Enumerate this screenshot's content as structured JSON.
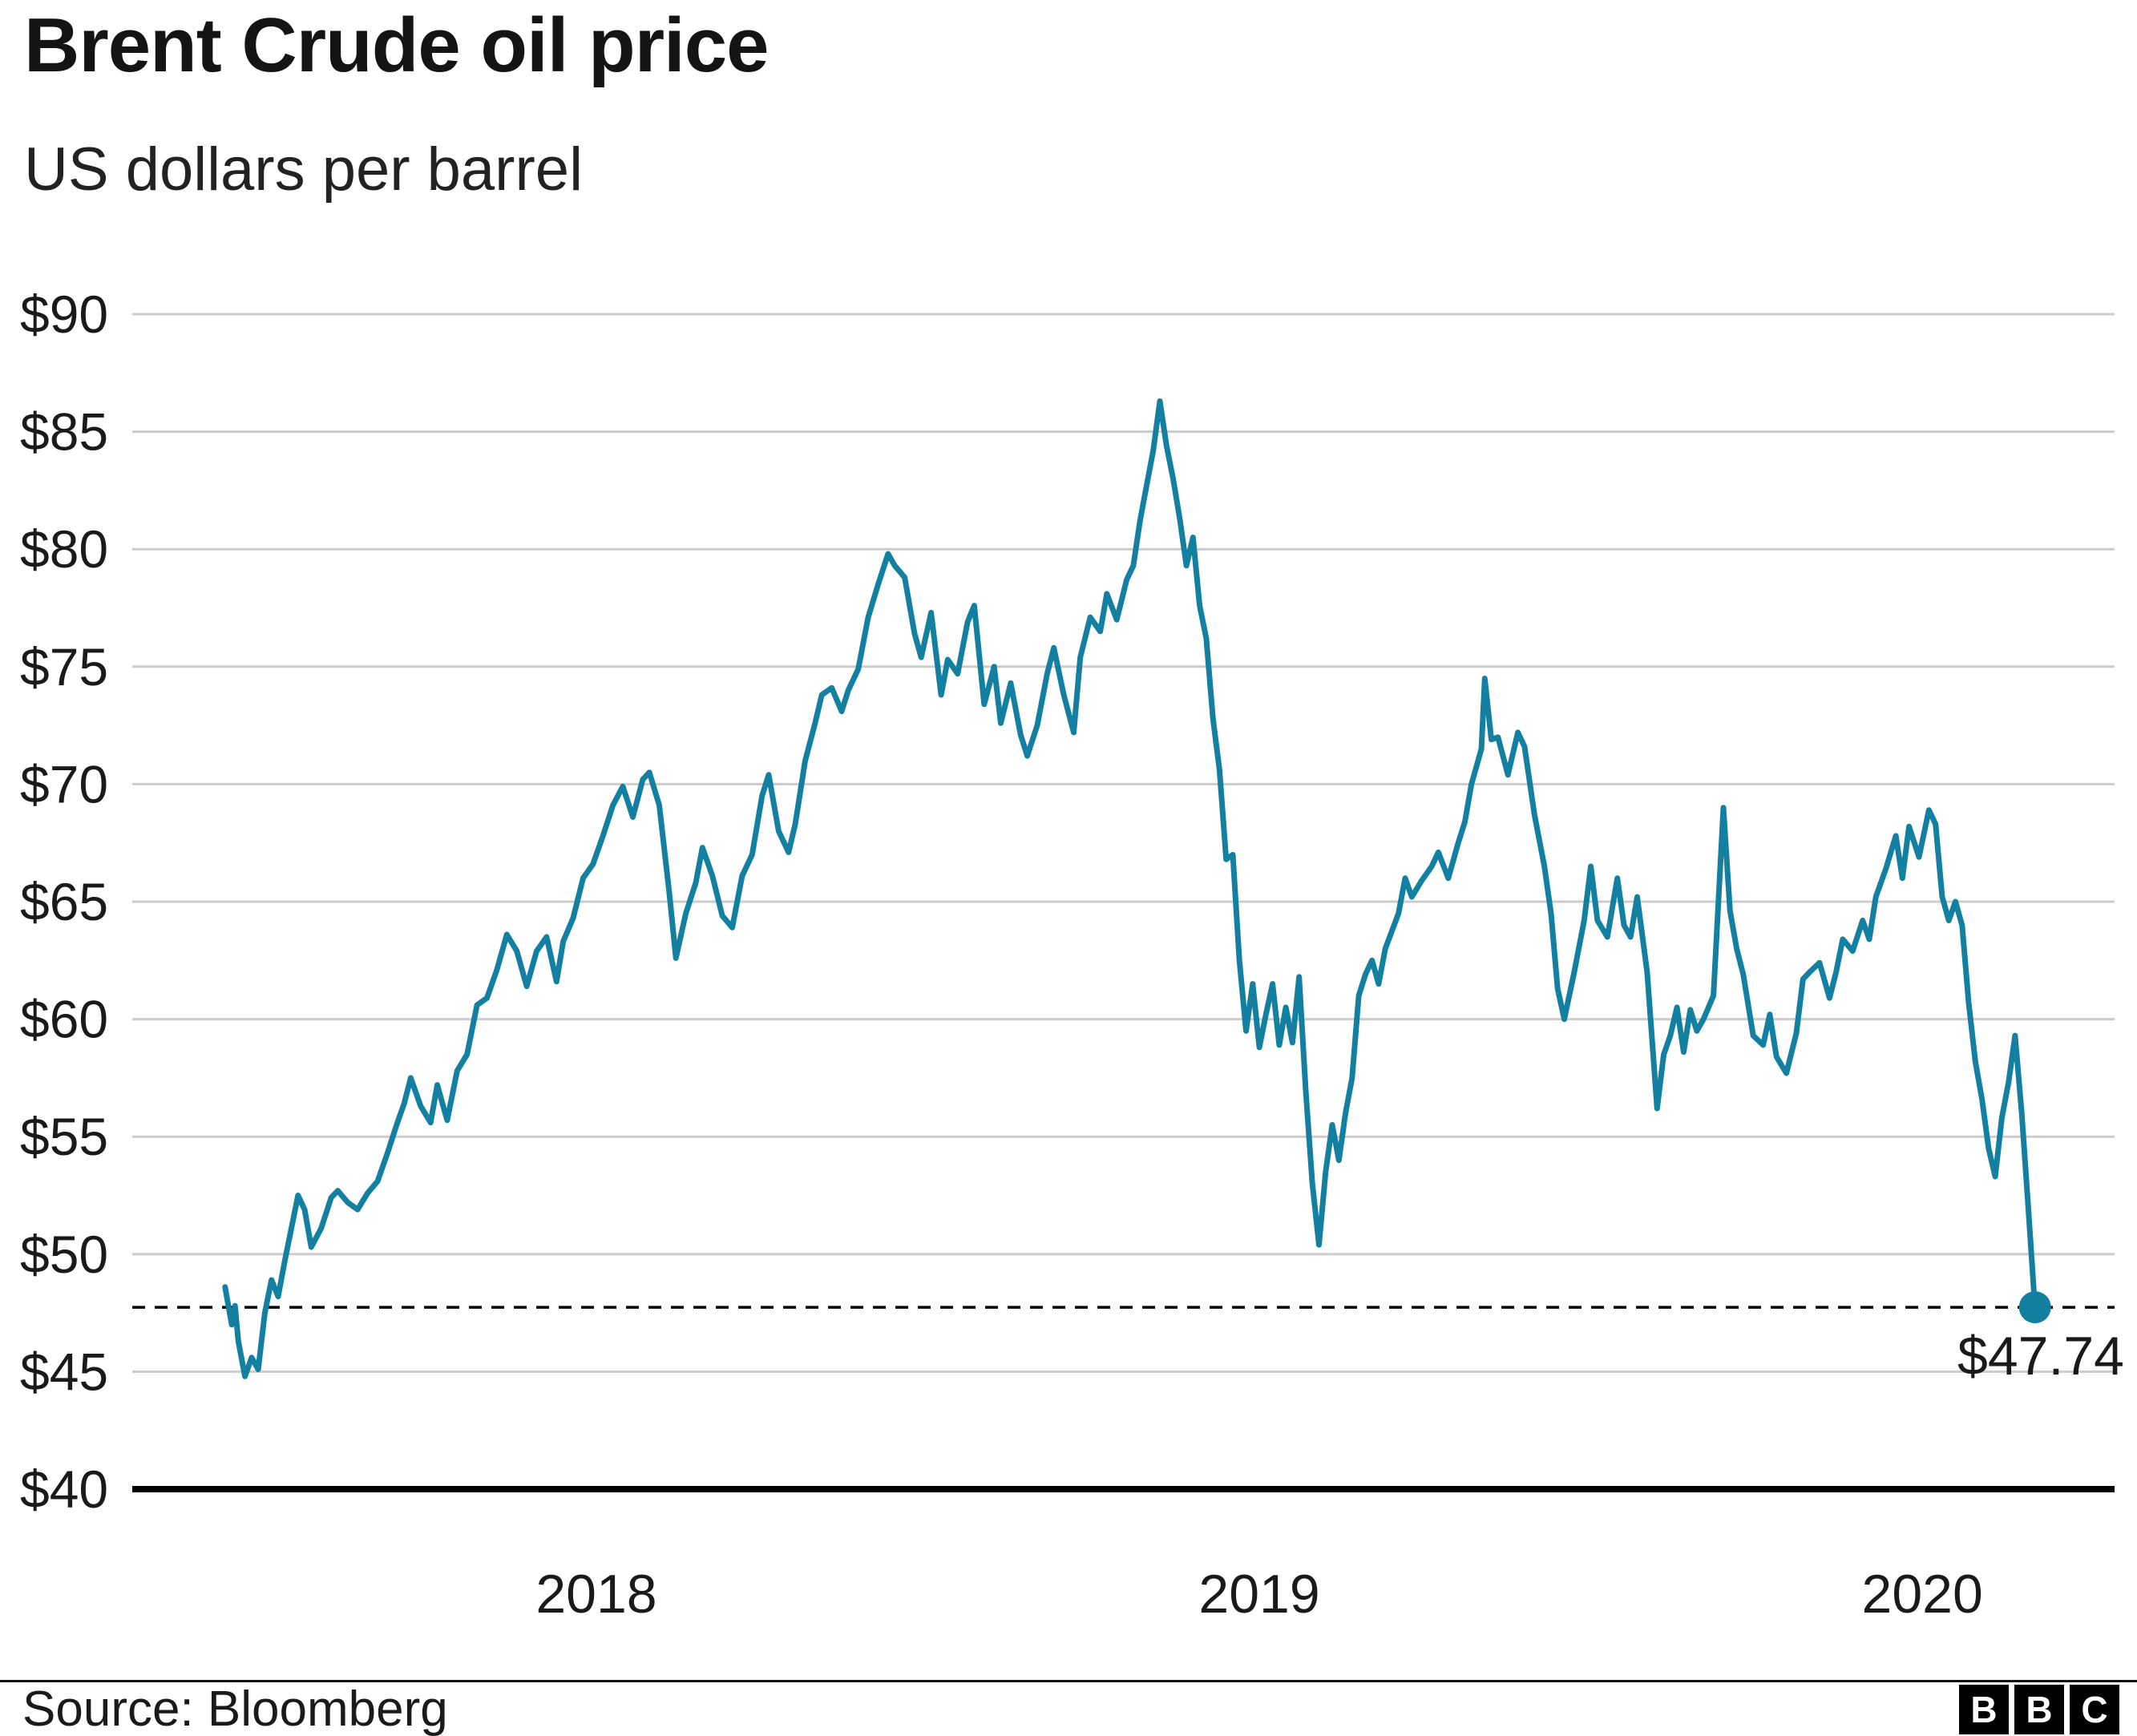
{
  "header": {
    "title": "Brent Crude oil price",
    "subtitle": "US dollars per barrel"
  },
  "footer": {
    "source": "Source: Bloomberg",
    "logo_letters": [
      "B",
      "B",
      "C"
    ]
  },
  "colors": {
    "line": "#1380A1",
    "annotation_text": "#1380A1",
    "grid": "#cccccc",
    "baseline": "#000000",
    "dashed": "#000000",
    "text": "#1a1a1a"
  },
  "chart_data": {
    "type": "line",
    "title": "Brent Crude oil price",
    "ylabel": "US dollars per barrel",
    "grid": true,
    "legend": "none",
    "x_domain": [
      2017.3,
      2020.29
    ],
    "ylim": [
      40,
      90
    ],
    "y_ticks": [
      {
        "value": 40,
        "label": "$40"
      },
      {
        "value": 45,
        "label": "$45"
      },
      {
        "value": 50,
        "label": "$50"
      },
      {
        "value": 55,
        "label": "$55"
      },
      {
        "value": 60,
        "label": "$60"
      },
      {
        "value": 65,
        "label": "$65"
      },
      {
        "value": 70,
        "label": "$70"
      },
      {
        "value": 75,
        "label": "$75"
      },
      {
        "value": 80,
        "label": "$80"
      },
      {
        "value": 85,
        "label": "$85"
      },
      {
        "value": 90,
        "label": "$90"
      }
    ],
    "x_ticks": [
      {
        "value": 2018,
        "label": "2018"
      },
      {
        "value": 2019,
        "label": "2019"
      },
      {
        "value": 2020,
        "label": "2020"
      }
    ],
    "annotation": {
      "value": 47.74,
      "label": "$47.74",
      "style": "dashed-rule-with-end-dot"
    },
    "series": [
      {
        "name": "Brent Crude oil price (USD per barrel)",
        "points": [
          [
            2017.44,
            48.6
          ],
          [
            2017.45,
            47.0
          ],
          [
            2017.455,
            47.8
          ],
          [
            2017.46,
            46.3
          ],
          [
            2017.47,
            44.8
          ],
          [
            2017.48,
            45.6
          ],
          [
            2017.49,
            45.1
          ],
          [
            2017.5,
            47.5
          ],
          [
            2017.51,
            48.9
          ],
          [
            2017.52,
            48.2
          ],
          [
            2017.53,
            49.7
          ],
          [
            2017.55,
            52.5
          ],
          [
            2017.56,
            51.9
          ],
          [
            2017.57,
            50.3
          ],
          [
            2017.585,
            51.1
          ],
          [
            2017.6,
            52.4
          ],
          [
            2017.61,
            52.7
          ],
          [
            2017.625,
            52.2
          ],
          [
            2017.64,
            51.9
          ],
          [
            2017.655,
            52.6
          ],
          [
            2017.67,
            53.1
          ],
          [
            2017.685,
            54.3
          ],
          [
            2017.7,
            55.6
          ],
          [
            2017.71,
            56.4
          ],
          [
            2017.72,
            57.5
          ],
          [
            2017.735,
            56.3
          ],
          [
            2017.75,
            55.6
          ],
          [
            2017.76,
            57.2
          ],
          [
            2017.775,
            55.7
          ],
          [
            2017.79,
            57.8
          ],
          [
            2017.805,
            58.5
          ],
          [
            2017.82,
            60.6
          ],
          [
            2017.835,
            60.9
          ],
          [
            2017.85,
            62.1
          ],
          [
            2017.865,
            63.6
          ],
          [
            2017.88,
            62.9
          ],
          [
            2017.895,
            61.4
          ],
          [
            2017.91,
            62.9
          ],
          [
            2017.925,
            63.5
          ],
          [
            2017.94,
            61.6
          ],
          [
            2017.95,
            63.3
          ],
          [
            2017.965,
            64.3
          ],
          [
            2017.98,
            66.0
          ],
          [
            2017.995,
            66.6
          ],
          [
            2018.01,
            67.8
          ],
          [
            2018.025,
            69.1
          ],
          [
            2018.04,
            69.9
          ],
          [
            2018.055,
            68.6
          ],
          [
            2018.07,
            70.2
          ],
          [
            2018.08,
            70.5
          ],
          [
            2018.095,
            69.1
          ],
          [
            2018.11,
            65.4
          ],
          [
            2018.12,
            62.6
          ],
          [
            2018.135,
            64.5
          ],
          [
            2018.15,
            65.8
          ],
          [
            2018.16,
            67.3
          ],
          [
            2018.175,
            66.1
          ],
          [
            2018.19,
            64.4
          ],
          [
            2018.205,
            63.9
          ],
          [
            2018.22,
            66.1
          ],
          [
            2018.235,
            67.0
          ],
          [
            2018.25,
            69.5
          ],
          [
            2018.26,
            70.4
          ],
          [
            2018.275,
            68.0
          ],
          [
            2018.29,
            67.1
          ],
          [
            2018.3,
            68.3
          ],
          [
            2018.315,
            71.0
          ],
          [
            2018.33,
            72.6
          ],
          [
            2018.34,
            73.8
          ],
          [
            2018.355,
            74.1
          ],
          [
            2018.37,
            73.1
          ],
          [
            2018.38,
            74.0
          ],
          [
            2018.395,
            74.9
          ],
          [
            2018.41,
            77.1
          ],
          [
            2018.425,
            78.5
          ],
          [
            2018.44,
            79.8
          ],
          [
            2018.45,
            79.3
          ],
          [
            2018.465,
            78.8
          ],
          [
            2018.48,
            76.4
          ],
          [
            2018.49,
            75.4
          ],
          [
            2018.505,
            77.3
          ],
          [
            2018.52,
            73.8
          ],
          [
            2018.53,
            75.3
          ],
          [
            2018.545,
            74.7
          ],
          [
            2018.56,
            76.9
          ],
          [
            2018.57,
            77.6
          ],
          [
            2018.585,
            73.4
          ],
          [
            2018.6,
            75.0
          ],
          [
            2018.61,
            72.6
          ],
          [
            2018.625,
            74.3
          ],
          [
            2018.64,
            72.1
          ],
          [
            2018.65,
            71.2
          ],
          [
            2018.665,
            72.5
          ],
          [
            2018.68,
            74.7
          ],
          [
            2018.69,
            75.8
          ],
          [
            2018.705,
            73.8
          ],
          [
            2018.72,
            72.2
          ],
          [
            2018.73,
            75.4
          ],
          [
            2018.745,
            77.1
          ],
          [
            2018.76,
            76.5
          ],
          [
            2018.77,
            78.1
          ],
          [
            2018.785,
            77.0
          ],
          [
            2018.8,
            78.7
          ],
          [
            2018.81,
            79.3
          ],
          [
            2018.82,
            81.2
          ],
          [
            2018.83,
            82.7
          ],
          [
            2018.84,
            84.2
          ],
          [
            2018.85,
            86.3
          ],
          [
            2018.86,
            84.4
          ],
          [
            2018.87,
            83.0
          ],
          [
            2018.88,
            81.3
          ],
          [
            2018.89,
            79.3
          ],
          [
            2018.9,
            80.5
          ],
          [
            2018.91,
            77.6
          ],
          [
            2018.92,
            76.2
          ],
          [
            2018.93,
            72.8
          ],
          [
            2018.94,
            70.6
          ],
          [
            2018.95,
            66.8
          ],
          [
            2018.96,
            67.0
          ],
          [
            2018.97,
            62.5
          ],
          [
            2018.98,
            59.5
          ],
          [
            2018.99,
            61.5
          ],
          [
            2019.0,
            58.8
          ],
          [
            2019.01,
            60.2
          ],
          [
            2019.02,
            61.5
          ],
          [
            2019.03,
            58.9
          ],
          [
            2019.04,
            60.5
          ],
          [
            2019.05,
            59.0
          ],
          [
            2019.06,
            61.8
          ],
          [
            2019.07,
            57.0
          ],
          [
            2019.08,
            53.0
          ],
          [
            2019.09,
            50.4
          ],
          [
            2019.1,
            53.5
          ],
          [
            2019.11,
            55.5
          ],
          [
            2019.12,
            54.0
          ],
          [
            2019.13,
            56.0
          ],
          [
            2019.14,
            57.5
          ],
          [
            2019.15,
            61.0
          ],
          [
            2019.16,
            61.9
          ],
          [
            2019.17,
            62.5
          ],
          [
            2019.18,
            61.5
          ],
          [
            2019.19,
            63.0
          ],
          [
            2019.21,
            64.5
          ],
          [
            2019.22,
            66.0
          ],
          [
            2019.23,
            65.2
          ],
          [
            2019.245,
            65.9
          ],
          [
            2019.26,
            66.5
          ],
          [
            2019.27,
            67.1
          ],
          [
            2019.285,
            66.0
          ],
          [
            2019.3,
            67.5
          ],
          [
            2019.31,
            68.4
          ],
          [
            2019.32,
            70.0
          ],
          [
            2019.33,
            71.0
          ],
          [
            2019.335,
            71.5
          ],
          [
            2019.34,
            74.5
          ],
          [
            2019.35,
            71.9
          ],
          [
            2019.36,
            72.0
          ],
          [
            2019.375,
            70.4
          ],
          [
            2019.39,
            72.2
          ],
          [
            2019.4,
            71.6
          ],
          [
            2019.415,
            68.7
          ],
          [
            2019.43,
            66.5
          ],
          [
            2019.44,
            64.5
          ],
          [
            2019.45,
            61.3
          ],
          [
            2019.46,
            60.0
          ],
          [
            2019.475,
            62.0
          ],
          [
            2019.49,
            64.2
          ],
          [
            2019.5,
            66.5
          ],
          [
            2019.51,
            64.2
          ],
          [
            2019.525,
            63.5
          ],
          [
            2019.54,
            66.0
          ],
          [
            2019.55,
            64.0
          ],
          [
            2019.56,
            63.5
          ],
          [
            2019.57,
            65.2
          ],
          [
            2019.585,
            62.0
          ],
          [
            2019.6,
            56.2
          ],
          [
            2019.61,
            58.5
          ],
          [
            2019.62,
            59.3
          ],
          [
            2019.63,
            60.5
          ],
          [
            2019.64,
            58.6
          ],
          [
            2019.65,
            60.4
          ],
          [
            2019.66,
            59.5
          ],
          [
            2019.67,
            60.0
          ],
          [
            2019.685,
            61.0
          ],
          [
            2019.7,
            69.0
          ],
          [
            2019.71,
            64.6
          ],
          [
            2019.72,
            63.0
          ],
          [
            2019.73,
            61.9
          ],
          [
            2019.745,
            59.3
          ],
          [
            2019.76,
            58.9
          ],
          [
            2019.77,
            60.2
          ],
          [
            2019.78,
            58.4
          ],
          [
            2019.795,
            57.7
          ],
          [
            2019.81,
            59.4
          ],
          [
            2019.82,
            61.7
          ],
          [
            2019.83,
            62.0
          ],
          [
            2019.845,
            62.4
          ],
          [
            2019.86,
            60.9
          ],
          [
            2019.87,
            62.0
          ],
          [
            2019.88,
            63.4
          ],
          [
            2019.895,
            62.9
          ],
          [
            2019.91,
            64.2
          ],
          [
            2019.92,
            63.4
          ],
          [
            2019.93,
            65.2
          ],
          [
            2019.945,
            66.4
          ],
          [
            2019.96,
            67.8
          ],
          [
            2019.97,
            66.0
          ],
          [
            2019.98,
            68.2
          ],
          [
            2019.995,
            66.9
          ],
          [
            2020.01,
            68.9
          ],
          [
            2020.02,
            68.3
          ],
          [
            2020.03,
            65.2
          ],
          [
            2020.04,
            64.2
          ],
          [
            2020.05,
            65.0
          ],
          [
            2020.06,
            64.0
          ],
          [
            2020.07,
            60.7
          ],
          [
            2020.08,
            58.2
          ],
          [
            2020.09,
            56.6
          ],
          [
            2020.1,
            54.5
          ],
          [
            2020.11,
            53.3
          ],
          [
            2020.12,
            55.8
          ],
          [
            2020.13,
            57.3
          ],
          [
            2020.14,
            59.3
          ],
          [
            2020.15,
            56.0
          ],
          [
            2020.16,
            51.9
          ],
          [
            2020.17,
            47.74
          ]
        ]
      }
    ]
  }
}
